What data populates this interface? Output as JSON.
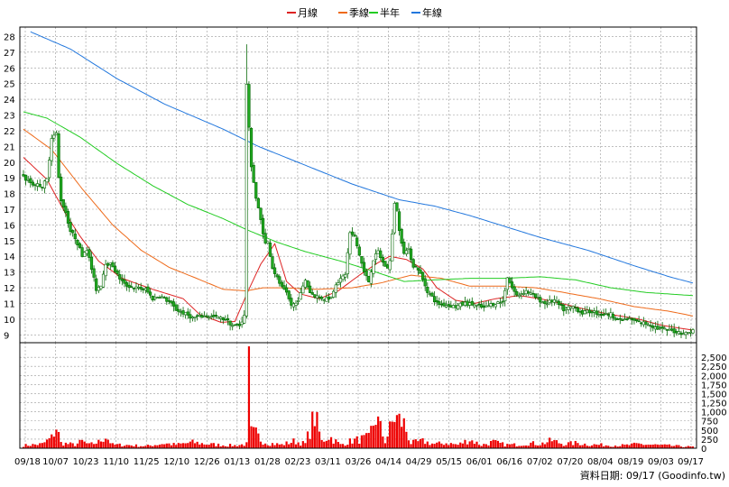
{
  "chart_data": {
    "type": "candlestick-with-volume",
    "legend": [
      {
        "name": "月線",
        "color": "#dd2222"
      },
      {
        "name": "季線",
        "color": "#ee6a1a"
      },
      {
        "name": "半年",
        "color": "#22cc22"
      },
      {
        "name": "年線",
        "color": "#2277dd"
      }
    ],
    "colors": {
      "up_body": "#ffffff",
      "down_body": "#22aa22",
      "candle_outline": "#006600",
      "volume": "#ee0000",
      "grid": "#999999"
    },
    "price_axis": {
      "min": 8.5,
      "max": 28.6,
      "ticks": [
        "9",
        "10",
        "11",
        "12",
        "13",
        "14",
        "15",
        "16",
        "17",
        "18",
        "19",
        "20",
        "21",
        "22",
        "23",
        "24",
        "25",
        "26",
        "27",
        "28"
      ]
    },
    "volume_axis": {
      "min": 0,
      "max": 2900,
      "ticks": [
        "0",
        "250",
        "500",
        "750",
        "1,000",
        "1,250",
        "1,500",
        "1,750",
        "2,000",
        "2,250",
        "2,500"
      ]
    },
    "x_labels": [
      "09/18",
      "10/07",
      "10/23",
      "11/10",
      "11/25",
      "12/10",
      "12/26",
      "01/13",
      "01/28",
      "02/23",
      "03/11",
      "03/26",
      "04/14",
      "04/29",
      "05/15",
      "06/01",
      "06/16",
      "07/02",
      "07/20",
      "08/04",
      "08/19",
      "09/03",
      "09/17"
    ],
    "grid": true,
    "legend_position": "top-center",
    "moving_averages": {
      "月線": [
        [
          0,
          20.3
        ],
        [
          10,
          18.9
        ],
        [
          18,
          16.7
        ],
        [
          24,
          15.3
        ],
        [
          32,
          13.7
        ],
        [
          42,
          12.6
        ],
        [
          55,
          11.9
        ],
        [
          68,
          11.3
        ],
        [
          75,
          10.3
        ],
        [
          84,
          9.8
        ],
        [
          90,
          9.85
        ],
        [
          96,
          11.9
        ],
        [
          101,
          13.5
        ],
        [
          107,
          14.8
        ],
        [
          112,
          12.4
        ],
        [
          118,
          11.6
        ],
        [
          126,
          11.3
        ],
        [
          134,
          11.8
        ],
        [
          143,
          12.8
        ],
        [
          151,
          13.6
        ],
        [
          156,
          14.0
        ],
        [
          163,
          13.8
        ],
        [
          170,
          13.2
        ],
        [
          176,
          12.0
        ],
        [
          184,
          11.2
        ],
        [
          192,
          11.0
        ],
        [
          201,
          11.3
        ],
        [
          211,
          11.5
        ],
        [
          220,
          11.3
        ],
        [
          229,
          11.0
        ],
        [
          240,
          10.6
        ],
        [
          250,
          10.3
        ],
        [
          262,
          10.0
        ],
        [
          272,
          9.6
        ],
        [
          285,
          9.3
        ]
      ],
      "季線": [
        [
          0,
          22.1
        ],
        [
          12,
          20.8
        ],
        [
          25,
          18.3
        ],
        [
          38,
          16.0
        ],
        [
          50,
          14.4
        ],
        [
          62,
          13.3
        ],
        [
          72,
          12.7
        ],
        [
          85,
          11.9
        ],
        [
          95,
          11.8
        ],
        [
          102,
          12.0
        ],
        [
          110,
          12.0
        ],
        [
          125,
          11.9
        ],
        [
          140,
          12.0
        ],
        [
          152,
          12.3
        ],
        [
          165,
          12.8
        ],
        [
          178,
          12.6
        ],
        [
          190,
          12.1
        ],
        [
          205,
          12.1
        ],
        [
          218,
          12.0
        ],
        [
          230,
          11.7
        ],
        [
          245,
          11.3
        ],
        [
          260,
          10.8
        ],
        [
          275,
          10.5
        ],
        [
          285,
          10.2
        ]
      ],
      "半年": [
        [
          0,
          23.2
        ],
        [
          10,
          22.8
        ],
        [
          24,
          21.6
        ],
        [
          40,
          19.9
        ],
        [
          55,
          18.5
        ],
        [
          70,
          17.3
        ],
        [
          85,
          16.4
        ],
        [
          95,
          15.7
        ],
        [
          108,
          14.9
        ],
        [
          120,
          14.3
        ],
        [
          135,
          13.7
        ],
        [
          150,
          13.0
        ],
        [
          162,
          12.4
        ],
        [
          175,
          12.5
        ],
        [
          190,
          12.6
        ],
        [
          205,
          12.6
        ],
        [
          220,
          12.7
        ],
        [
          235,
          12.5
        ],
        [
          250,
          12.0
        ],
        [
          265,
          11.7
        ],
        [
          285,
          11.5
        ]
      ],
      "年線": [
        [
          3,
          28.3
        ],
        [
          20,
          27.2
        ],
        [
          40,
          25.3
        ],
        [
          60,
          23.7
        ],
        [
          85,
          22.1
        ],
        [
          100,
          21.0
        ],
        [
          120,
          19.8
        ],
        [
          140,
          18.6
        ],
        [
          160,
          17.6
        ],
        [
          175,
          17.2
        ],
        [
          190,
          16.6
        ],
        [
          205,
          15.9
        ],
        [
          220,
          15.2
        ],
        [
          240,
          14.4
        ],
        [
          260,
          13.4
        ],
        [
          275,
          12.7
        ],
        [
          285,
          12.3
        ]
      ]
    },
    "price_path": [
      [
        0,
        19.0
      ],
      [
        4,
        18.6
      ],
      [
        8,
        18.5
      ],
      [
        10,
        18.9
      ],
      [
        12,
        21.6
      ],
      [
        14,
        21.8
      ],
      [
        15,
        19.0
      ],
      [
        16,
        17.6
      ],
      [
        18,
        16.8
      ],
      [
        20,
        15.6
      ],
      [
        22,
        15.2
      ],
      [
        25,
        14.1
      ],
      [
        27,
        14.5
      ],
      [
        29,
        13.2
      ],
      [
        31,
        11.9
      ],
      [
        33,
        12.2
      ],
      [
        35,
        13.6
      ],
      [
        38,
        13.4
      ],
      [
        40,
        12.8
      ],
      [
        43,
        12.2
      ],
      [
        47,
        12.0
      ],
      [
        52,
        11.9
      ],
      [
        55,
        11.3
      ],
      [
        58,
        11.5
      ],
      [
        62,
        11.1
      ],
      [
        65,
        10.6
      ],
      [
        68,
        10.4
      ],
      [
        72,
        10.1
      ],
      [
        78,
        10.2
      ],
      [
        82,
        10.1
      ],
      [
        86,
        10.0
      ],
      [
        89,
        9.6
      ],
      [
        92,
        9.6
      ],
      [
        94,
        10.2
      ],
      [
        95,
        25.0
      ],
      [
        96,
        22.1
      ],
      [
        97,
        19.8
      ],
      [
        99,
        17.7
      ],
      [
        101,
        16.3
      ],
      [
        103,
        14.8
      ],
      [
        104,
        14.9
      ],
      [
        106,
        13.3
      ],
      [
        108,
        12.6
      ],
      [
        110,
        12.0
      ],
      [
        112,
        11.6
      ],
      [
        114,
        10.9
      ],
      [
        116,
        11.0
      ],
      [
        118,
        11.6
      ],
      [
        120,
        12.5
      ],
      [
        122,
        11.7
      ],
      [
        124,
        11.5
      ],
      [
        128,
        11.3
      ],
      [
        131,
        11.4
      ],
      [
        133,
        12.3
      ],
      [
        135,
        12.5
      ],
      [
        137,
        12.9
      ],
      [
        139,
        15.5
      ],
      [
        141,
        15.2
      ],
      [
        143,
        14.1
      ],
      [
        145,
        13.0
      ],
      [
        147,
        12.4
      ],
      [
        149,
        13.8
      ],
      [
        151,
        14.3
      ],
      [
        153,
        13.6
      ],
      [
        155,
        13.2
      ],
      [
        156,
        13.8
      ],
      [
        157,
        15.4
      ],
      [
        158,
        17.3
      ],
      [
        159,
        17.0
      ],
      [
        160,
        15.6
      ],
      [
        162,
        14.3
      ],
      [
        164,
        14.4
      ],
      [
        166,
        13.4
      ],
      [
        168,
        13.2
      ],
      [
        170,
        12.5
      ],
      [
        172,
        11.8
      ],
      [
        174,
        11.4
      ],
      [
        176,
        11.0
      ],
      [
        180,
        10.9
      ],
      [
        184,
        10.8
      ],
      [
        188,
        11.0
      ],
      [
        192,
        10.9
      ],
      [
        196,
        10.7
      ],
      [
        200,
        11.0
      ],
      [
        204,
        11.1
      ],
      [
        206,
        12.7
      ],
      [
        208,
        12.0
      ],
      [
        210,
        11.5
      ],
      [
        214,
        11.8
      ],
      [
        218,
        11.4
      ],
      [
        222,
        11.0
      ],
      [
        226,
        11.2
      ],
      [
        230,
        10.6
      ],
      [
        234,
        10.8
      ],
      [
        238,
        10.4
      ],
      [
        242,
        10.5
      ],
      [
        246,
        10.3
      ],
      [
        250,
        10.3
      ],
      [
        254,
        9.9
      ],
      [
        258,
        10.0
      ],
      [
        262,
        9.8
      ],
      [
        266,
        9.7
      ],
      [
        270,
        9.4
      ],
      [
        274,
        9.3
      ],
      [
        278,
        9.2
      ],
      [
        282,
        9.1
      ],
      [
        285,
        9.3
      ]
    ],
    "volume_path": [
      [
        0,
        80
      ],
      [
        8,
        120
      ],
      [
        12,
        300
      ],
      [
        14,
        620
      ],
      [
        16,
        150
      ],
      [
        22,
        100
      ],
      [
        25,
        200
      ],
      [
        28,
        100
      ],
      [
        32,
        180
      ],
      [
        35,
        350
      ],
      [
        38,
        100
      ],
      [
        45,
        90
      ],
      [
        52,
        60
      ],
      [
        60,
        140
      ],
      [
        65,
        100
      ],
      [
        72,
        170
      ],
      [
        78,
        120
      ],
      [
        85,
        90
      ],
      [
        90,
        80
      ],
      [
        95,
        120
      ],
      [
        96,
        2800
      ],
      [
        97,
        450
      ],
      [
        99,
        420
      ],
      [
        101,
        250
      ],
      [
        104,
        150
      ],
      [
        110,
        100
      ],
      [
        115,
        200
      ],
      [
        120,
        130
      ],
      [
        124,
        950
      ],
      [
        127,
        200
      ],
      [
        130,
        350
      ],
      [
        135,
        100
      ],
      [
        140,
        220
      ],
      [
        147,
        300
      ],
      [
        150,
        920
      ],
      [
        154,
        200
      ],
      [
        158,
        900
      ],
      [
        162,
        700
      ],
      [
        165,
        150
      ],
      [
        170,
        200
      ],
      [
        175,
        120
      ],
      [
        180,
        150
      ],
      [
        185,
        100
      ],
      [
        190,
        250
      ],
      [
        195,
        90
      ],
      [
        200,
        180
      ],
      [
        205,
        100
      ],
      [
        210,
        100
      ],
      [
        215,
        150
      ],
      [
        220,
        120
      ],
      [
        225,
        220
      ],
      [
        230,
        120
      ],
      [
        236,
        150
      ],
      [
        240,
        110
      ],
      [
        248,
        90
      ],
      [
        256,
        80
      ],
      [
        262,
        120
      ],
      [
        270,
        90
      ],
      [
        276,
        70
      ],
      [
        285,
        40
      ]
    ],
    "footer_text": "資料日期: 09/17  (Goodinfo.tw)"
  }
}
